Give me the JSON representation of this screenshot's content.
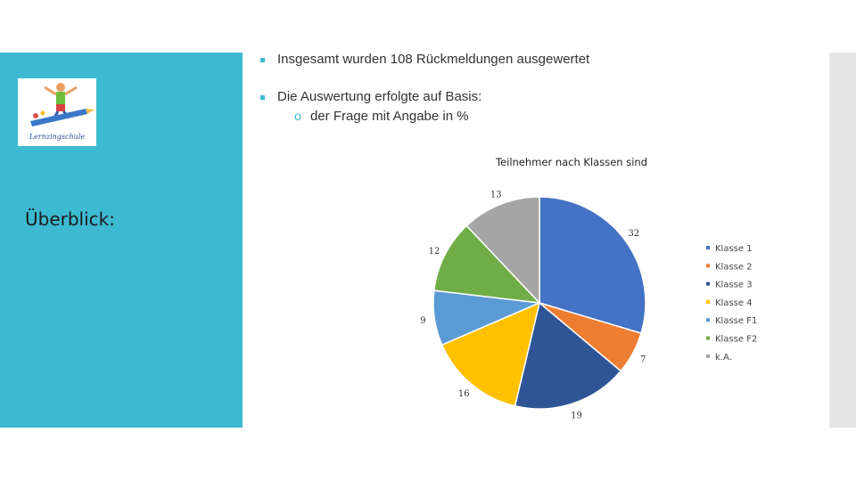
{
  "slide": {
    "bullets": [
      "Insgesamt wurden 108 Rückmeldungen ausgewertet",
      "Die Auswertung erfolgte auf Basis:"
    ],
    "sub_bullet_marker": "o",
    "sub_bullet": "der Frage mit Angabe in %",
    "side_heading": "Überblick:",
    "logo_text": "Lernzingschule",
    "accent_color": "#3dbad2"
  },
  "chart_data": {
    "type": "pie",
    "title": "Teilnehmer nach Klassen sind",
    "categories": [
      "Klasse 1",
      "Klasse 2",
      "Klasse 3",
      "Klasse 4",
      "Klasse F1",
      "Klasse F2",
      "k.A."
    ],
    "values": [
      32,
      7,
      19,
      16,
      9,
      12,
      13
    ],
    "colors": [
      "#4472c4",
      "#ed7d31",
      "#2f5597",
      "#ffc000",
      "#5b9bd5",
      "#70ad47",
      "#a5a5a5"
    ],
    "legend_position": "right"
  }
}
